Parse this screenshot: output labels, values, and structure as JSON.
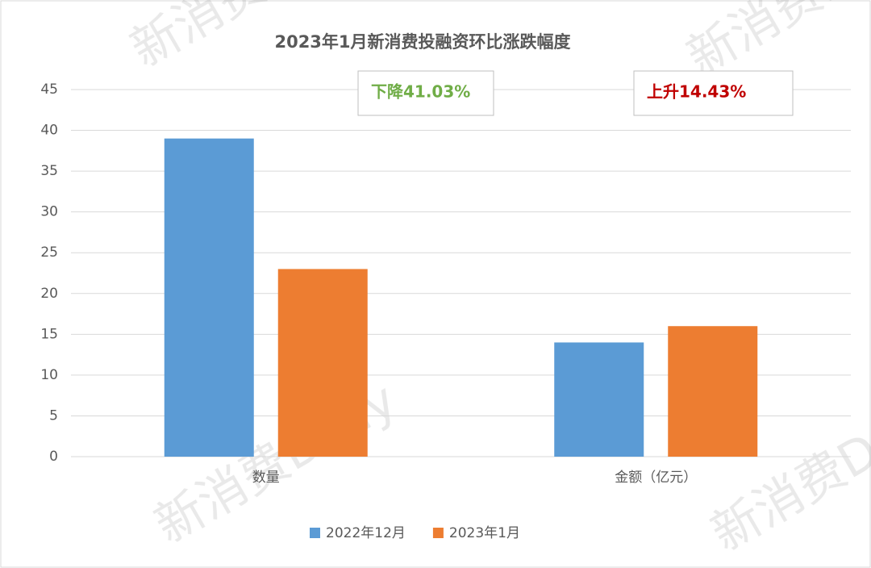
{
  "chart_data": {
    "type": "bar",
    "title": "2023年1月新消费投融资环比涨跌幅度",
    "categories": [
      "数量",
      "金额（亿元）"
    ],
    "series": [
      {
        "name": "2022年12月",
        "color": "#5b9bd5",
        "values": [
          39,
          14
        ]
      },
      {
        "name": "2023年1月",
        "color": "#ed7d31",
        "values": [
          23,
          16
        ]
      }
    ],
    "ylim": [
      0,
      45
    ],
    "yticks": [
      0,
      5,
      10,
      15,
      20,
      25,
      30,
      35,
      40,
      45
    ],
    "grid": true,
    "legend": "bottom",
    "annotations": [
      {
        "text": "下降41.03%",
        "color": "#70ad47"
      },
      {
        "text": "上升14.43%",
        "color": "#c00000"
      }
    ],
    "watermark": "新消费Daily"
  }
}
